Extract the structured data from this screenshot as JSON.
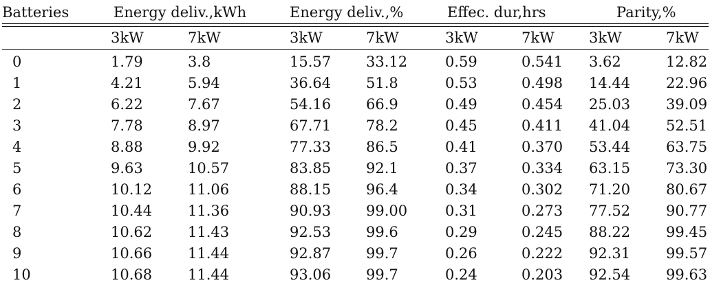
{
  "table": {
    "header": {
      "batteries": "Batteries",
      "groups": [
        "Energy deliv.,kWh",
        "Energy deliv.,%",
        "Effec. dur,hrs",
        "Parity,%"
      ],
      "subheaders": [
        "3kW",
        "7kW",
        "3kW",
        "7kW",
        "3kW",
        "7kW",
        "3kW",
        "7kW"
      ]
    },
    "rows": [
      [
        "0",
        "1.79",
        "3.8",
        "15.57",
        "33.12",
        "0.59",
        "0.541",
        "3.62",
        "12.82"
      ],
      [
        "1",
        "4.21",
        "5.94",
        "36.64",
        "51.8",
        "0.53",
        "0.498",
        "14.44",
        "22.96"
      ],
      [
        "2",
        "6.22",
        "7.67",
        "54.16",
        "66.9",
        "0.49",
        "0.454",
        "25.03",
        "39.09"
      ],
      [
        "3",
        "7.78",
        "8.97",
        "67.71",
        "78.2",
        "0.45",
        "0.411",
        "41.04",
        "52.51"
      ],
      [
        "4",
        "8.88",
        "9.92",
        "77.33",
        "86.5",
        "0.41",
        "0.370",
        "53.44",
        "63.75"
      ],
      [
        "5",
        "9.63",
        "10.57",
        "83.85",
        "92.1",
        "0.37",
        "0.334",
        "63.15",
        "73.30"
      ],
      [
        "6",
        "10.12",
        "11.06",
        "88.15",
        "96.4",
        "0.34",
        "0.302",
        "71.20",
        "80.67"
      ],
      [
        "7",
        "10.44",
        "11.36",
        "90.93",
        "99.00",
        "0.31",
        "0.273",
        "77.52",
        "90.77"
      ],
      [
        "8",
        "10.62",
        "11.43",
        "92.53",
        "99.6",
        "0.29",
        "0.245",
        "88.22",
        "99.45"
      ],
      [
        "9",
        "10.66",
        "11.44",
        "92.87",
        "99.7",
        "0.26",
        "0.222",
        "92.31",
        "99.57"
      ],
      [
        "10",
        "10.68",
        "11.44",
        "93.06",
        "99.7",
        "0.24",
        "0.203",
        "92.54",
        "99.63"
      ]
    ]
  }
}
